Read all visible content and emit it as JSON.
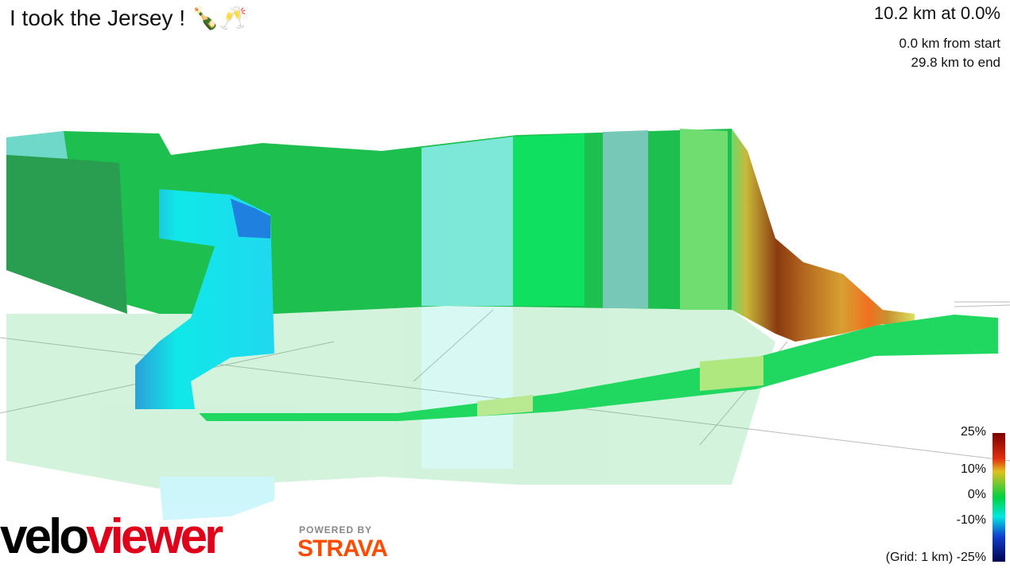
{
  "header": {
    "title": "I took the Jersey ! 🍾🥂",
    "segment": "10.2 km at 0.0%",
    "from_start": "0.0 km from start",
    "to_end": "29.8 km to end"
  },
  "legend": {
    "labels": [
      "25%",
      "10%",
      "0%",
      "-10%",
      "(Grid: 1 km) -25%"
    ]
  },
  "logos": {
    "velo": "velo",
    "viewer": "viewer",
    "powered_by": "POWERED BY",
    "strava": "STRAVA"
  }
}
